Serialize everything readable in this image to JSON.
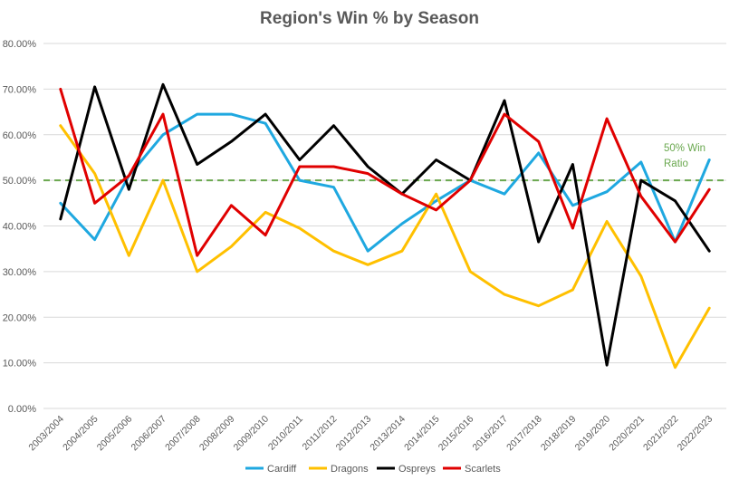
{
  "chart_data": {
    "type": "line",
    "title": "Region's Win % by Season",
    "xlabel": "",
    "ylabel": "",
    "ylim": [
      0,
      80
    ],
    "y_tick_labels": [
      "0.00%",
      "10.00%",
      "20.00%",
      "30.00%",
      "40.00%",
      "50.00%",
      "60.00%",
      "70.00%",
      "80.00%"
    ],
    "grid": true,
    "legend_position": "bottom",
    "categories": [
      "2003/2004",
      "2004/2005",
      "2005/2006",
      "2006/2007",
      "2007/2008",
      "2008/2009",
      "2009/2010",
      "2010/2011",
      "2011/2012",
      "2012/2013",
      "2013/2014",
      "2014/2015",
      "2015/2016",
      "2016/2017",
      "2017/2018",
      "2018/2019",
      "2019/2020",
      "2020/2021",
      "2021/2022",
      "2022/2023"
    ],
    "series": [
      {
        "name": "Cardiff",
        "color": "#1fa8e0",
        "values": [
          45.0,
          37.0,
          51.0,
          60.0,
          64.5,
          64.5,
          62.5,
          50.0,
          48.5,
          34.5,
          40.5,
          45.5,
          50.0,
          47.0,
          56.0,
          44.5,
          47.5,
          54.0,
          36.5,
          54.5
        ]
      },
      {
        "name": "Dragons",
        "color": "#ffc000",
        "values": [
          62.0,
          51.5,
          33.5,
          50.0,
          30.0,
          35.5,
          43.0,
          39.5,
          34.5,
          31.5,
          34.5,
          47.0,
          30.0,
          25.0,
          22.5,
          26.0,
          41.0,
          29.0,
          9.0,
          22.0
        ]
      },
      {
        "name": "Ospreys",
        "color": "#000000",
        "values": [
          41.5,
          70.5,
          48.0,
          71.0,
          53.5,
          58.5,
          64.5,
          54.5,
          62.0,
          53.0,
          47.0,
          54.5,
          50.0,
          67.5,
          36.5,
          53.5,
          9.5,
          50.0,
          45.5,
          34.5
        ]
      },
      {
        "name": "Scarlets",
        "color": "#e00000",
        "values": [
          70.0,
          45.0,
          51.0,
          64.5,
          33.5,
          44.5,
          38.0,
          53.0,
          53.0,
          51.5,
          47.0,
          43.5,
          50.0,
          64.5,
          58.5,
          39.5,
          63.5,
          46.5,
          36.5,
          48.0
        ]
      }
    ],
    "reference_line": {
      "value": 50,
      "color": "#6aa84f",
      "label_lines": [
        "50% Win",
        "Ratio"
      ]
    }
  }
}
